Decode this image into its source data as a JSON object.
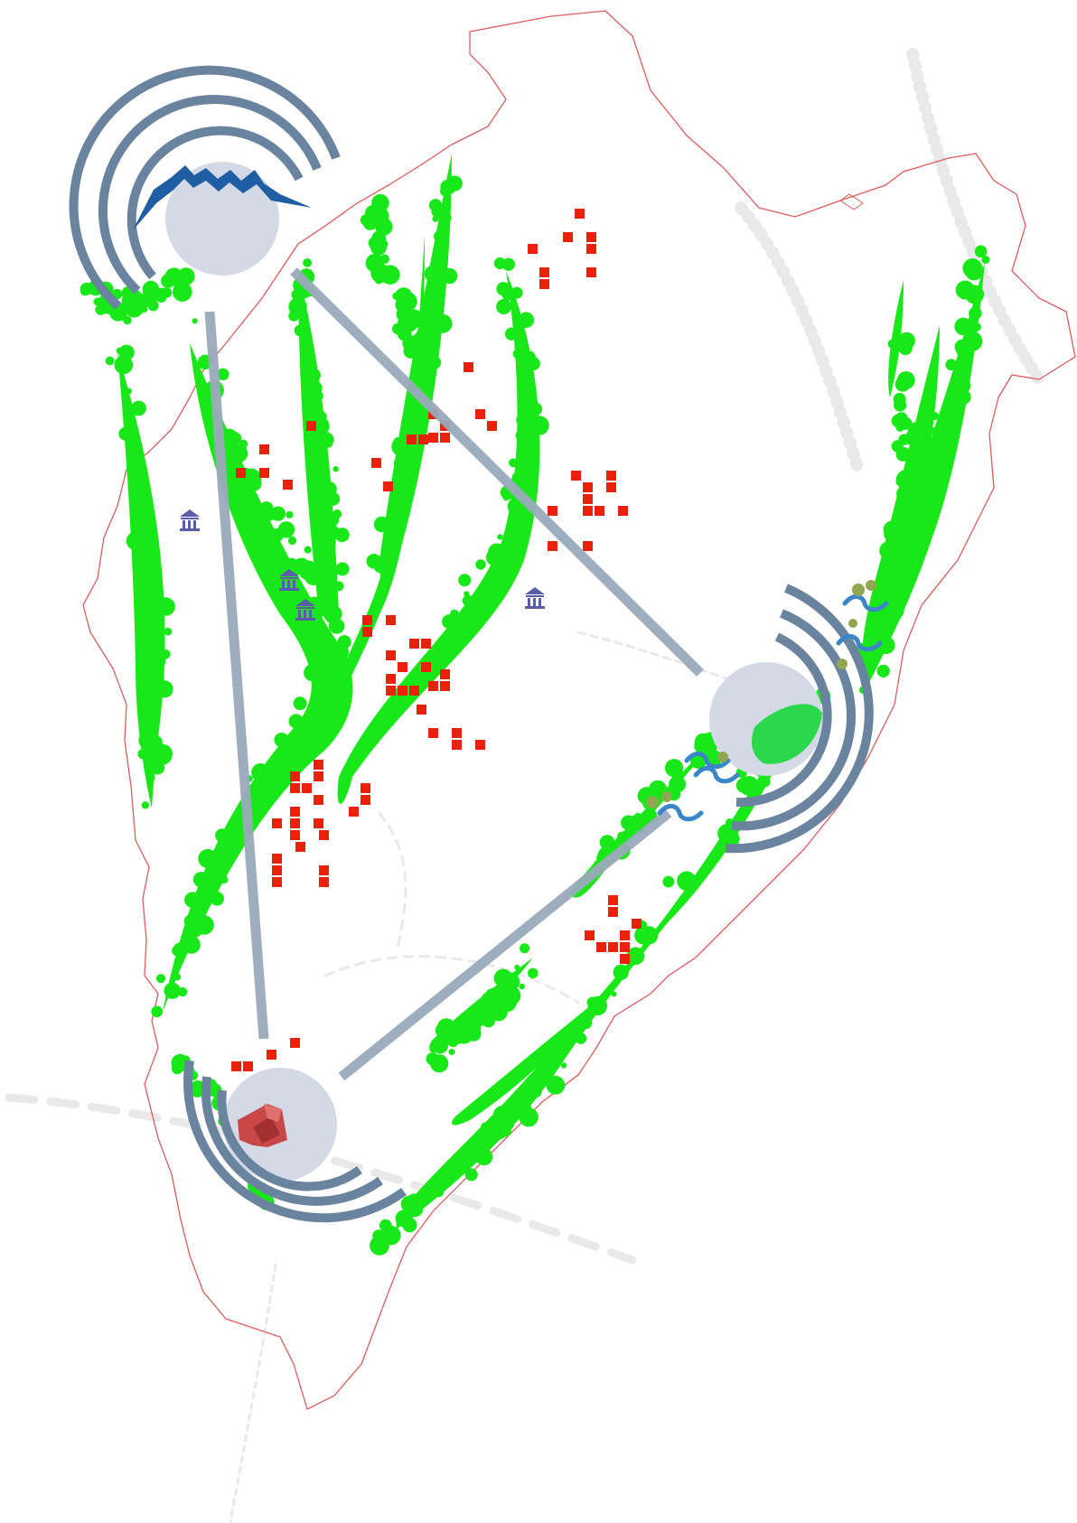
{
  "map": {
    "colors": {
      "boundary": "#e05c5c",
      "greenery": "#18e818",
      "settlement": "#e8200c",
      "node_fill": "#d3dae6",
      "rings": "#6a84a0",
      "links": "#9aaabb",
      "mountain": "#1f5ea3",
      "water": "#3a86c8",
      "museum": "#5a5ea8",
      "landmark": "#d04a4a"
    },
    "nodes": [
      {
        "name": "mountain-node",
        "icon": "mountain-icon"
      },
      {
        "name": "river-node",
        "icon": "water-wave-icon"
      },
      {
        "name": "heritage-node",
        "icon": "landmark-building-icon"
      }
    ],
    "links": [
      {
        "from": "mountain-node",
        "to": "heritage-node"
      },
      {
        "from": "mountain-node",
        "to": "river-node"
      },
      {
        "from": "heritage-node",
        "to": "river-node"
      }
    ],
    "layers": [
      "boundary",
      "green-corridors",
      "settlement-squares",
      "museum-icons",
      "ring-nodes",
      "connection-lines"
    ],
    "museum_count": 4
  }
}
